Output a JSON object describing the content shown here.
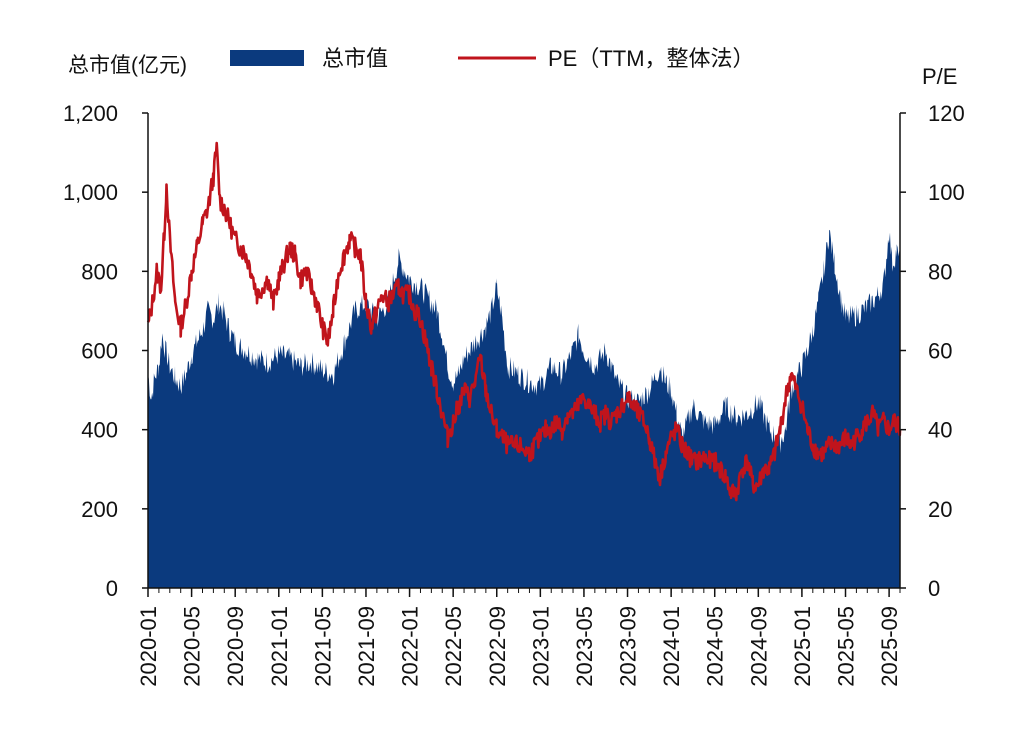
{
  "chart_data": {
    "type": "area+line",
    "title": "",
    "left_axis_label": "总市值(亿元)",
    "right_axis_label": "P/E",
    "left_ylim": [
      0,
      1200
    ],
    "left_ticks": [
      "0",
      "200",
      "400",
      "600",
      "800",
      "1,000",
      "1,200"
    ],
    "left_tick_values": [
      0,
      200,
      400,
      600,
      800,
      1000,
      1200
    ],
    "right_ylim": [
      0,
      120
    ],
    "right_ticks": [
      "0",
      "20",
      "40",
      "60",
      "80",
      "100",
      "120"
    ],
    "right_tick_values": [
      0,
      20,
      40,
      60,
      80,
      100,
      120
    ],
    "x_start": "2020-01",
    "x_end": "2025-10",
    "x_tick_labels": [
      "2020-01",
      "2020-05",
      "2020-09",
      "2021-01",
      "2021-05",
      "2021-09",
      "2022-01",
      "2022-05",
      "2022-09",
      "2023-01",
      "2023-05",
      "2023-09",
      "2024-01",
      "2024-05",
      "2024-09",
      "2025-01",
      "2025-05",
      "2025-09"
    ],
    "x_tick_month_index": [
      0,
      4,
      8,
      12,
      16,
      20,
      24,
      28,
      32,
      36,
      40,
      44,
      48,
      52,
      56,
      60,
      64,
      68
    ],
    "series": [
      {
        "name": "总市值",
        "type": "area",
        "axis": "left",
        "color": "#0b3a7e",
        "points": [
          [
            0,
            540
          ],
          [
            0.3,
            480
          ],
          [
            0.6,
            530
          ],
          [
            1,
            560
          ],
          [
            1.3,
            640
          ],
          [
            1.6,
            600
          ],
          [
            2,
            560
          ],
          [
            2.5,
            530
          ],
          [
            3,
            510
          ],
          [
            3.5,
            540
          ],
          [
            4,
            590
          ],
          [
            4.5,
            620
          ],
          [
            5,
            650
          ],
          [
            5.5,
            700
          ],
          [
            6,
            680
          ],
          [
            6.5,
            720
          ],
          [
            7,
            690
          ],
          [
            7.5,
            650
          ],
          [
            8,
            620
          ],
          [
            8.5,
            610
          ],
          [
            9,
            600
          ],
          [
            10,
            580
          ],
          [
            11,
            570
          ],
          [
            12,
            590
          ],
          [
            13,
            580
          ],
          [
            14,
            560
          ],
          [
            15,
            570
          ],
          [
            16,
            550
          ],
          [
            17,
            540
          ],
          [
            18,
            620
          ],
          [
            19,
            700
          ],
          [
            20,
            720
          ],
          [
            21,
            680
          ],
          [
            22,
            720
          ],
          [
            23,
            830
          ],
          [
            24,
            780
          ],
          [
            25,
            760
          ],
          [
            26,
            720
          ],
          [
            26.5,
            700
          ],
          [
            27,
            640
          ],
          [
            27.5,
            560
          ],
          [
            28,
            520
          ],
          [
            28.5,
            540
          ],
          [
            29,
            580
          ],
          [
            30,
            620
          ],
          [
            31,
            660
          ],
          [
            31.5,
            700
          ],
          [
            32,
            760
          ],
          [
            32.5,
            680
          ],
          [
            33,
            560
          ],
          [
            34,
            540
          ],
          [
            35,
            520
          ],
          [
            36,
            510
          ],
          [
            37,
            560
          ],
          [
            38,
            540
          ],
          [
            39,
            600
          ],
          [
            39.5,
            640
          ],
          [
            40,
            600
          ],
          [
            41,
            560
          ],
          [
            42,
            600
          ],
          [
            43,
            520
          ],
          [
            44,
            480
          ],
          [
            45,
            470
          ],
          [
            46,
            500
          ],
          [
            47,
            560
          ],
          [
            47.5,
            520
          ],
          [
            48,
            500
          ],
          [
            48.5,
            440
          ],
          [
            49,
            380
          ],
          [
            49.5,
            420
          ],
          [
            50,
            460
          ],
          [
            51,
            420
          ],
          [
            52,
            410
          ],
          [
            53,
            460
          ],
          [
            54,
            430
          ],
          [
            55,
            440
          ],
          [
            56,
            470
          ],
          [
            57,
            400
          ],
          [
            58,
            370
          ],
          [
            58.5,
            400
          ],
          [
            59,
            500
          ],
          [
            60,
            560
          ],
          [
            60.5,
            600
          ],
          [
            61,
            650
          ],
          [
            61.5,
            720
          ],
          [
            62,
            800
          ],
          [
            62.5,
            900
          ],
          [
            63,
            820
          ],
          [
            63.5,
            740
          ],
          [
            64,
            680
          ],
          [
            65,
            690
          ],
          [
            66,
            710
          ],
          [
            67,
            740
          ],
          [
            67.5,
            770
          ],
          [
            68,
            900
          ],
          [
            68.3,
            820
          ],
          [
            68.7,
            850
          ],
          [
            69,
            820
          ]
        ]
      },
      {
        "name": "PE（TTM，整体法）",
        "type": "line",
        "axis": "right",
        "color": "#c0141c",
        "points": [
          [
            0,
            66
          ],
          [
            0.4,
            72
          ],
          [
            0.8,
            80
          ],
          [
            1.2,
            76
          ],
          [
            1.5,
            90
          ],
          [
            1.7,
            102
          ],
          [
            2,
            88
          ],
          [
            2.5,
            72
          ],
          [
            3,
            66
          ],
          [
            3.5,
            72
          ],
          [
            4,
            80
          ],
          [
            4.5,
            86
          ],
          [
            5,
            92
          ],
          [
            5.5,
            96
          ],
          [
            6,
            104
          ],
          [
            6.3,
            111
          ],
          [
            6.6,
            98
          ],
          [
            7,
            96
          ],
          [
            7.5,
            92
          ],
          [
            8,
            88
          ],
          [
            8.5,
            86
          ],
          [
            9,
            84
          ],
          [
            9.5,
            80
          ],
          [
            10,
            74
          ],
          [
            10.5,
            76
          ],
          [
            11,
            78
          ],
          [
            11.5,
            72
          ],
          [
            12,
            78
          ],
          [
            12.5,
            82
          ],
          [
            13,
            86
          ],
          [
            13.5,
            84
          ],
          [
            14,
            78
          ],
          [
            14.5,
            80
          ],
          [
            15,
            76
          ],
          [
            15.5,
            72
          ],
          [
            16,
            66
          ],
          [
            16.5,
            62
          ],
          [
            17,
            70
          ],
          [
            17.5,
            80
          ],
          [
            18,
            84
          ],
          [
            18.5,
            88
          ],
          [
            19,
            86
          ],
          [
            19.5,
            84
          ],
          [
            20,
            72
          ],
          [
            20.5,
            66
          ],
          [
            21,
            70
          ],
          [
            21.5,
            74
          ],
          [
            22,
            72
          ],
          [
            22.5,
            74
          ],
          [
            23,
            76
          ],
          [
            23.5,
            74
          ],
          [
            24,
            74
          ],
          [
            24.5,
            70
          ],
          [
            25,
            68
          ],
          [
            25.5,
            62
          ],
          [
            26,
            56
          ],
          [
            26.5,
            50
          ],
          [
            27,
            44
          ],
          [
            27.5,
            38
          ],
          [
            28,
            42
          ],
          [
            28.5,
            46
          ],
          [
            29,
            50
          ],
          [
            29.5,
            48
          ],
          [
            30,
            52
          ],
          [
            30.5,
            58
          ],
          [
            31,
            50
          ],
          [
            31.5,
            44
          ],
          [
            32,
            40
          ],
          [
            32.5,
            38
          ],
          [
            33,
            36
          ],
          [
            34,
            36
          ],
          [
            35,
            34
          ],
          [
            35.5,
            36
          ],
          [
            36,
            38
          ],
          [
            36.5,
            40
          ],
          [
            37,
            40
          ],
          [
            37.5,
            42
          ],
          [
            38,
            40
          ],
          [
            38.5,
            44
          ],
          [
            39,
            44
          ],
          [
            39.5,
            46
          ],
          [
            40,
            48
          ],
          [
            40.5,
            46
          ],
          [
            41,
            44
          ],
          [
            41.5,
            42
          ],
          [
            42,
            44
          ],
          [
            42.5,
            42
          ],
          [
            43,
            44
          ],
          [
            43.5,
            46
          ],
          [
            44,
            48
          ],
          [
            44.5,
            46
          ],
          [
            45,
            44
          ],
          [
            45.5,
            42
          ],
          [
            46,
            38
          ],
          [
            46.5,
            32
          ],
          [
            47,
            28
          ],
          [
            47.5,
            34
          ],
          [
            48,
            38
          ],
          [
            48.5,
            40
          ],
          [
            49,
            36
          ],
          [
            49.5,
            34
          ],
          [
            50,
            32
          ],
          [
            50.5,
            32
          ],
          [
            51,
            33
          ],
          [
            51.5,
            32
          ],
          [
            52,
            32
          ],
          [
            52.5,
            30
          ],
          [
            53,
            28
          ],
          [
            53.5,
            24
          ],
          [
            54,
            24
          ],
          [
            54.5,
            30
          ],
          [
            55,
            32
          ],
          [
            55.5,
            26
          ],
          [
            56,
            26
          ],
          [
            56.5,
            30
          ],
          [
            57,
            30
          ],
          [
            57.5,
            34
          ],
          [
            58,
            40
          ],
          [
            58.5,
            48
          ],
          [
            59,
            54
          ],
          [
            59.5,
            50
          ],
          [
            60,
            46
          ],
          [
            60.5,
            40
          ],
          [
            61,
            36
          ],
          [
            61.5,
            34
          ],
          [
            62,
            34
          ],
          [
            62.5,
            36
          ],
          [
            63,
            36
          ],
          [
            63.5,
            36
          ],
          [
            64,
            38
          ],
          [
            64.5,
            36
          ],
          [
            65,
            38
          ],
          [
            65.5,
            40
          ],
          [
            66,
            42
          ],
          [
            66.5,
            44
          ],
          [
            67,
            40
          ],
          [
            67.5,
            42
          ],
          [
            68,
            40
          ],
          [
            68.5,
            42
          ],
          [
            69,
            40
          ]
        ]
      }
    ]
  },
  "legend": {
    "area_label": "总市值",
    "line_label": "PE（TTM，整体法）"
  },
  "colors": {
    "area": "#0b3a7e",
    "line": "#c0141c",
    "axis": "#111111"
  }
}
